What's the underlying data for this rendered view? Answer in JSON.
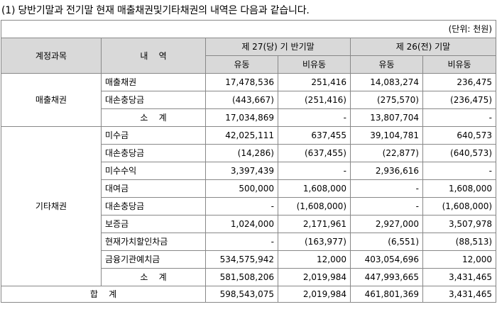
{
  "heading": "(1) 당반기말과 전기말 현재 매출채권및기타채권의 내역은 다음과 같습니다.",
  "unit": "(단위: 천원)",
  "headers": {
    "account": "계정과목",
    "item": "내    역",
    "current_period": "제 27(당) 기 반기말",
    "prior_period": "제 26(전) 기말",
    "current": "유동",
    "noncurrent": "비유동"
  },
  "groups": [
    {
      "name": "매출채권",
      "rows": [
        {
          "label": "매출채권",
          "values": [
            "17,478,536",
            "251,416",
            "14,083,274",
            "236,475"
          ]
        },
        {
          "label": "대손충당금",
          "values": [
            "(443,667)",
            "(251,416)",
            "(275,570)",
            "(236,475)"
          ]
        },
        {
          "label": "소    계",
          "subtotal": true,
          "values": [
            "17,034,869",
            "-",
            "13,807,704",
            "-"
          ]
        }
      ]
    },
    {
      "name": "기타채권",
      "rows": [
        {
          "label": "미수금",
          "values": [
            "42,025,111",
            "637,455",
            "39,104,781",
            "640,573"
          ]
        },
        {
          "label": "대손충당금",
          "values": [
            "(14,286)",
            "(637,455)",
            "(22,877)",
            "(640,573)"
          ]
        },
        {
          "label": "미수수익",
          "values": [
            "3,397,439",
            "-",
            "2,936,616",
            "-"
          ]
        },
        {
          "label": "대여금",
          "values": [
            "500,000",
            "1,608,000",
            "-",
            "1,608,000"
          ]
        },
        {
          "label": "대손충당금",
          "values": [
            "-",
            "(1,608,000)",
            "-",
            "(1,608,000)"
          ]
        },
        {
          "label": "보증금",
          "values": [
            "1,024,000",
            "2,171,961",
            "2,927,000",
            "3,507,978"
          ]
        },
        {
          "label": "현재가치할인차금",
          "values": [
            "-",
            "(163,977)",
            "(6,551)",
            "(88,513)"
          ]
        },
        {
          "label": "금융기관예치금",
          "values": [
            "534,575,942",
            "12,000",
            "403,054,696",
            "12,000"
          ]
        },
        {
          "label": "소    계",
          "subtotal": true,
          "values": [
            "581,508,206",
            "2,019,984",
            "447,993,665",
            "3,431,465"
          ]
        }
      ]
    }
  ],
  "total": {
    "label": "합    계",
    "values": [
      "598,543,075",
      "2,019,984",
      "461,801,369",
      "3,431,465"
    ]
  }
}
